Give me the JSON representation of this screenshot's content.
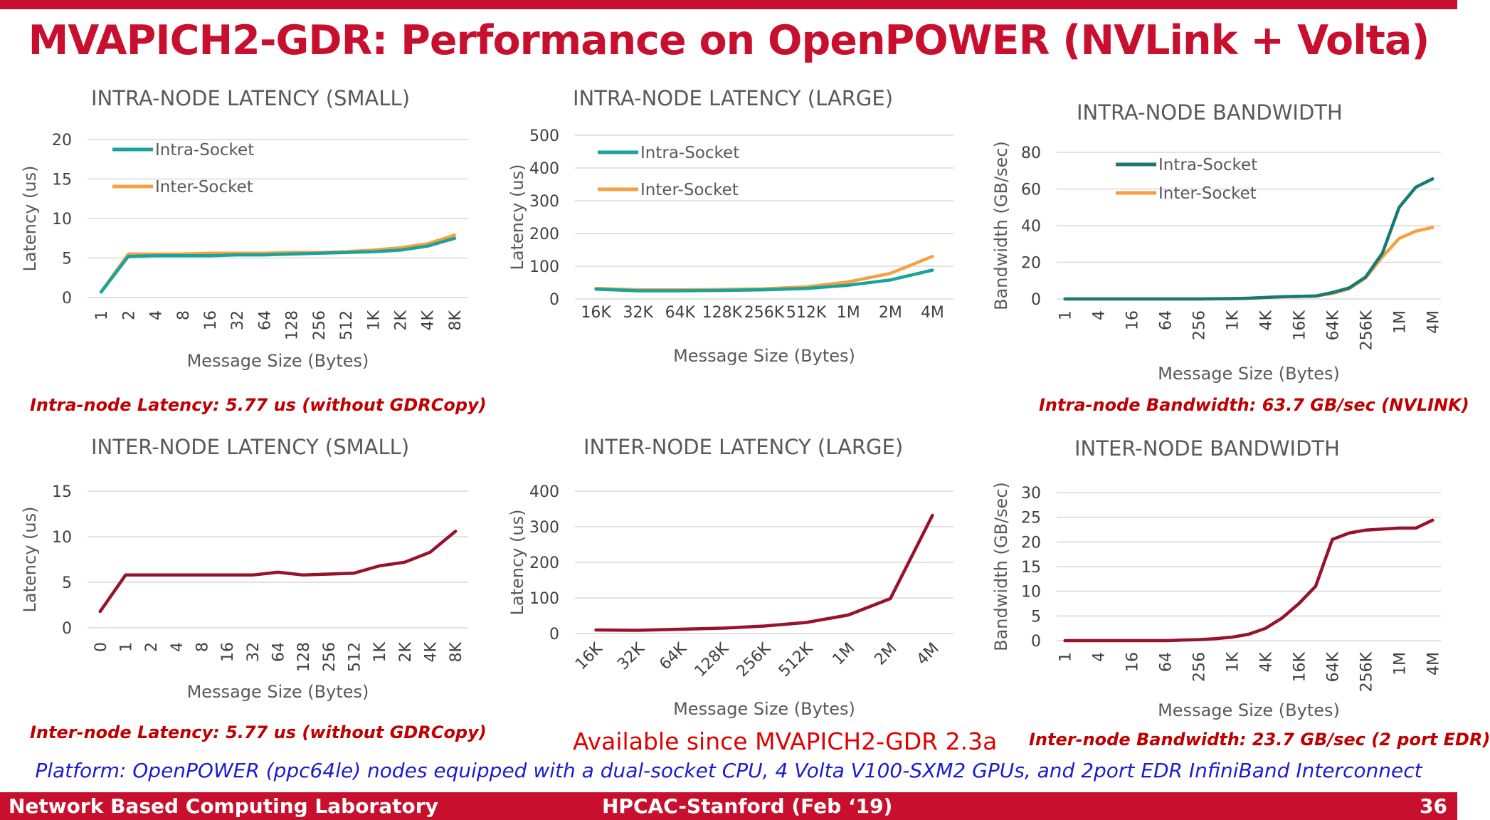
{
  "title": "MVAPICH2-GDR: Performance on OpenPOWER (NVLink + Volta)",
  "notes": {
    "intra_latency": "Intra-node Latency: 5.77 us (without GDRCopy)",
    "intra_bandwidth": "Intra-node Bandwidth: 63.7 GB/sec (NVLINK)",
    "inter_latency": "Inter-node Latency: 5.77 us (without GDRCopy)",
    "inter_bandwidth": "Inter-node Bandwidth: 23.7 GB/sec (2 port EDR)",
    "available": "Available since MVAPICH2-GDR 2.3a",
    "platform": "Platform: OpenPOWER (ppc64le) nodes equipped with a dual-socket CPU, 4 Volta V100-SXM2 GPUs, and 2port EDR InfiniBand Interconnect"
  },
  "footer": {
    "left": "Network Based Computing Laboratory",
    "center": "HPCAC-Stanford (Feb ‘19)",
    "page": "36"
  },
  "colors": {
    "intra_small": "#1aa39a",
    "intra_bw": "#177a73",
    "inter_socket": "#f7a040",
    "inter_node": "#99122c",
    "brand": "#c8102e"
  },
  "chart_data": [
    {
      "id": "intra-small",
      "type": "line",
      "title": "INTRA-NODE LATENCY (SMALL)",
      "xlabel": "Message Size (Bytes)",
      "ylabel": "Latency (us)",
      "categories": [
        "1",
        "2",
        "4",
        "8",
        "16",
        "32",
        "64",
        "128",
        "256",
        "512",
        "1K",
        "2K",
        "4K",
        "8K"
      ],
      "ylim": [
        0,
        20
      ],
      "yticks": [
        0,
        5,
        10,
        15,
        20
      ],
      "legend": "top-left",
      "grid": true,
      "series": [
        {
          "name": "Intra-Socket",
          "color": "#1aa39a",
          "values": [
            0.7,
            5.2,
            5.3,
            5.3,
            5.3,
            5.4,
            5.4,
            5.5,
            5.6,
            5.7,
            5.8,
            6.0,
            6.5,
            7.5
          ]
        },
        {
          "name": "Inter-Socket",
          "color": "#f7a040",
          "values": [
            0.7,
            5.5,
            5.5,
            5.5,
            5.6,
            5.6,
            5.6,
            5.7,
            5.7,
            5.8,
            6.0,
            6.3,
            6.8,
            7.9
          ]
        }
      ]
    },
    {
      "id": "intra-large",
      "type": "line",
      "title": "INTRA-NODE LATENCY (LARGE)",
      "xlabel": "Message Size (Bytes)",
      "ylabel": "Latency (us)",
      "categories": [
        "16K",
        "32K",
        "64K",
        "128K",
        "256K",
        "512K",
        "1M",
        "2M",
        "4M"
      ],
      "ylim": [
        0,
        500
      ],
      "yticks": [
        0,
        100,
        200,
        300,
        400,
        500
      ],
      "legend": "top-left",
      "grid": true,
      "series": [
        {
          "name": "Intra-Socket",
          "color": "#1aa39a",
          "values": [
            30,
            25,
            25,
            26,
            28,
            32,
            42,
            58,
            88
          ]
        },
        {
          "name": "Inter-Socket",
          "color": "#f7a040",
          "values": [
            32,
            28,
            28,
            29,
            31,
            37,
            52,
            78,
            130
          ]
        }
      ]
    },
    {
      "id": "intra-bw",
      "type": "line",
      "title": "INTRA-NODE BANDWIDTH",
      "xlabel": "Message Size (Bytes)",
      "ylabel": "Bandwidth (GB/sec)",
      "categories": [
        "1",
        "2",
        "4",
        "8",
        "16",
        "32",
        "64",
        "128",
        "256",
        "512",
        "1K",
        "2K",
        "4K",
        "8K",
        "16K",
        "32K",
        "64K",
        "128K",
        "256K",
        "512K",
        "1M",
        "2M",
        "4M"
      ],
      "ticklabels": [
        "1",
        "4",
        "16",
        "64",
        "256",
        "1K",
        "4K",
        "16K",
        "64K",
        "256K",
        "1M",
        "4M"
      ],
      "ylim": [
        0,
        80
      ],
      "yticks": [
        0,
        20,
        40,
        60,
        80
      ],
      "legend": "top-center",
      "grid": true,
      "series": [
        {
          "name": "Intra-Socket",
          "color": "#177a73",
          "values": [
            0,
            0,
            0,
            0,
            0,
            0,
            0,
            0,
            0,
            0.1,
            0.2,
            0.4,
            0.8,
            1.2,
            1.4,
            1.6,
            3.5,
            6,
            12,
            25,
            50,
            61,
            65.5
          ]
        },
        {
          "name": "Inter-Socket",
          "color": "#f7a040",
          "values": [
            0,
            0,
            0,
            0,
            0,
            0,
            0,
            0,
            0,
            0.1,
            0.2,
            0.4,
            0.8,
            1.2,
            1.4,
            1.6,
            3,
            5.5,
            11.5,
            23,
            33,
            37,
            39
          ]
        }
      ]
    },
    {
      "id": "inter-small",
      "type": "line",
      "title": "INTER-NODE LATENCY (SMALL)",
      "xlabel": "Message Size (Bytes)",
      "ylabel": "Latency (us)",
      "categories": [
        "0",
        "1",
        "2",
        "4",
        "8",
        "16",
        "32",
        "64",
        "128",
        "256",
        "512",
        "1K",
        "2K",
        "4K",
        "8K"
      ],
      "ylim": [
        0,
        15
      ],
      "yticks": [
        0,
        5,
        10,
        15
      ],
      "grid": true,
      "series": [
        {
          "color": "#99122c",
          "values": [
            1.8,
            5.8,
            5.8,
            5.8,
            5.8,
            5.8,
            5.8,
            6.1,
            5.8,
            5.9,
            6.0,
            6.8,
            7.2,
            8.3,
            10.6
          ]
        }
      ]
    },
    {
      "id": "inter-large",
      "type": "line",
      "title": "INTER-NODE LATENCY (LARGE)",
      "xlabel": "Message Size (Bytes)",
      "ylabel": "Latency (us)",
      "categories": [
        "16K",
        "32K",
        "64K",
        "128K",
        "256K",
        "512K",
        "1M",
        "2M",
        "4M"
      ],
      "ylim": [
        0,
        400
      ],
      "yticks": [
        0,
        100,
        200,
        300,
        400
      ],
      "grid": true,
      "series": [
        {
          "color": "#99122c",
          "values": [
            10,
            9,
            12,
            15,
            21,
            31,
            52,
            98,
            332
          ]
        }
      ]
    },
    {
      "id": "inter-bw",
      "type": "line",
      "title": "INTER-NODE BANDWIDTH",
      "xlabel": "Message Size (Bytes)",
      "ylabel": "Bandwidth (GB/sec)",
      "categories": [
        "1",
        "2",
        "4",
        "8",
        "16",
        "32",
        "64",
        "128",
        "256",
        "512",
        "1K",
        "2K",
        "4K",
        "8K",
        "16K",
        "32K",
        "64K",
        "128K",
        "256K",
        "512K",
        "1M",
        "2M",
        "4M"
      ],
      "ticklabels": [
        "1",
        "4",
        "16",
        "64",
        "256",
        "1K",
        "4K",
        "16K",
        "64K",
        "256K",
        "1M",
        "4M"
      ],
      "ylim": [
        0,
        30
      ],
      "yticks": [
        0,
        5,
        10,
        15,
        20,
        25,
        30
      ],
      "grid": true,
      "series": [
        {
          "color": "#99122c",
          "values": [
            0,
            0,
            0,
            0,
            0,
            0,
            0,
            0.1,
            0.2,
            0.4,
            0.7,
            1.3,
            2.5,
            4.6,
            7.5,
            11,
            20.5,
            21.8,
            22.4,
            22.6,
            22.8,
            22.8,
            24.4
          ]
        }
      ]
    }
  ]
}
